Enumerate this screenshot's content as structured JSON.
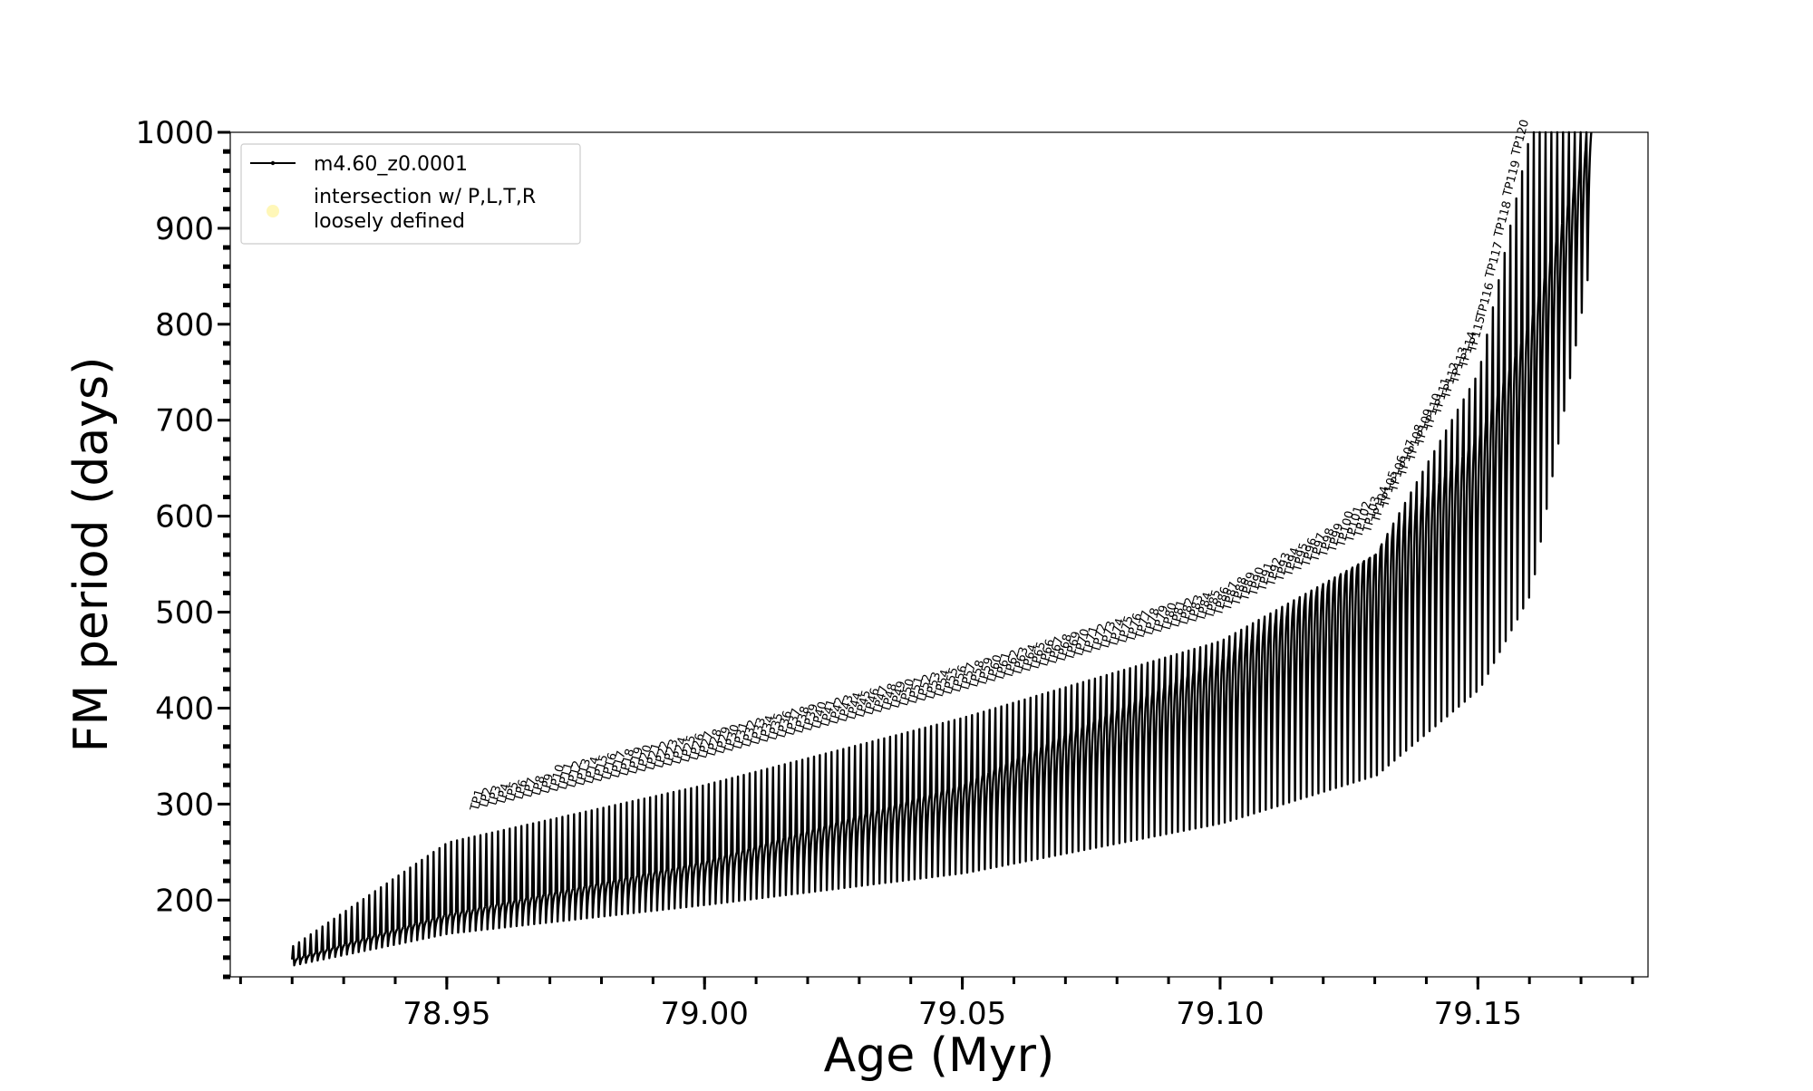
{
  "chart_data": {
    "type": "line",
    "title": "",
    "xlabel": "Age (Myr)",
    "ylabel": "FM period (days)",
    "xlim": [
      78.908,
      79.183
    ],
    "ylim": [
      120,
      1000
    ],
    "x_ticks": [
      78.95,
      79.0,
      79.05,
      79.1,
      79.15
    ],
    "x_tick_labels": [
      "78.95",
      "79.00",
      "79.05",
      "79.10",
      "79.15"
    ],
    "y_ticks": [
      200,
      300,
      400,
      500,
      600,
      700,
      800,
      900,
      1000
    ],
    "y_tick_labels": [
      "200",
      "300",
      "400",
      "500",
      "600",
      "700",
      "800",
      "900",
      "1000"
    ],
    "grid": false,
    "legend_position": "top-left",
    "legend": [
      {
        "label": "m4.60_z0.0001",
        "color": "#000000",
        "marker": "line-dot"
      },
      {
        "label": "intersection w/ P,L,T,R\nloosely defined",
        "color": "#fff7b8",
        "marker": "circle"
      }
    ],
    "series": [
      {
        "name": "m4.60_z0.0001",
        "description_type": "pulse_envelope",
        "color": "#000000",
        "x_start": 78.92,
        "x_end": 79.172,
        "pulses": 222,
        "envelope_x": [
          78.92,
          78.95,
          79.0,
          79.05,
          79.1,
          79.13,
          79.15,
          79.16,
          79.172
        ],
        "envelope_baseline": [
          138,
          185,
          240,
          320,
          450,
          560,
          680,
          800,
          1000
        ],
        "envelope_trough": [
          132,
          165,
          195,
          228,
          280,
          330,
          420,
          520,
          880
        ],
        "envelope_peak": [
          152,
          260,
          320,
          390,
          470,
          560,
          750,
          1000,
          1000
        ]
      }
    ],
    "pulse_label_prefix": "TP",
    "pulse_labels_first": 1,
    "pulse_labels_last": 120
  }
}
